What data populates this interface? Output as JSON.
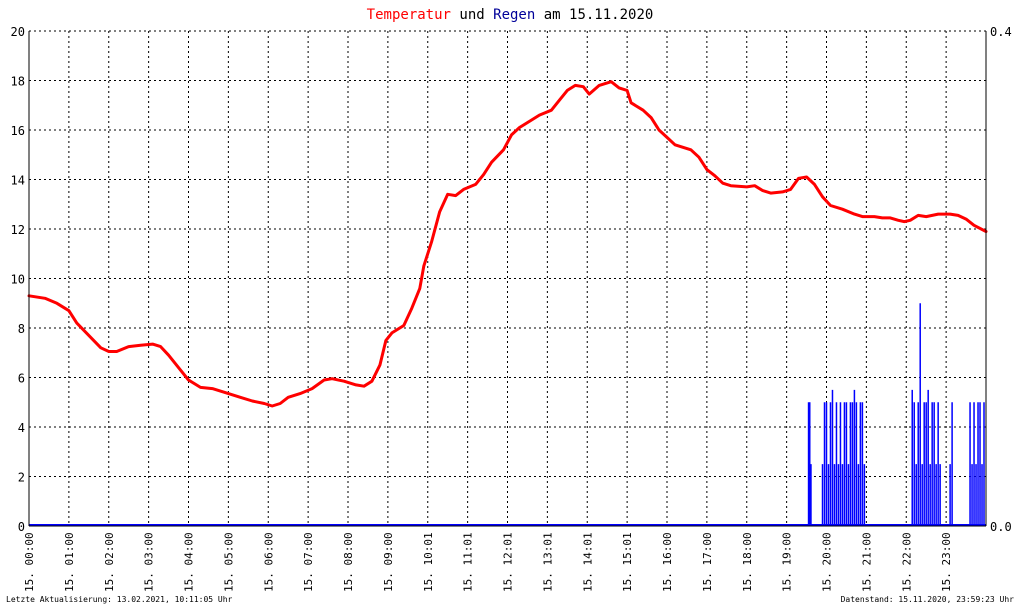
{
  "title": {
    "temp_word": "Temperatur",
    "and_word": "und",
    "rain_word": "Regen",
    "date_text": "am 15.11.2020"
  },
  "footer": {
    "left": "Letzte Aktualisierung: 13.02.2021, 10:11:05 Uhr",
    "right": "Datenstand: 15.11.2020, 23:59:23 Uhr"
  },
  "colors": {
    "temperature": "#ff0000",
    "rain": "#0000ff",
    "title_rain": "#000099",
    "grid": "#000000"
  },
  "chart_data": {
    "type": "line",
    "grid": true,
    "x_unit": "hours",
    "xlim": [
      0,
      24
    ],
    "ylim": [
      0,
      20
    ],
    "y_right_lim": [
      0,
      0.4
    ],
    "y_ticks": [
      "0",
      "2",
      "4",
      "6",
      "8",
      "10",
      "12",
      "14",
      "16",
      "18",
      "20"
    ],
    "y_right_ticks": [
      "0.0",
      "0.4"
    ],
    "x_ticks": [
      "15. 00:00",
      "15. 01:00",
      "15. 02:00",
      "15. 03:00",
      "15. 04:00",
      "15. 05:00",
      "15. 06:00",
      "15. 07:00",
      "15. 08:00",
      "15. 09:00",
      "15. 10:01",
      "15. 11:01",
      "15. 12:01",
      "15. 13:01",
      "15. 14:01",
      "15. 15:01",
      "15. 16:00",
      "15. 17:00",
      "15. 18:00",
      "15. 19:00",
      "15. 20:00",
      "15. 21:00",
      "15. 22:00",
      "15. 23:00"
    ],
    "series": [
      {
        "name": "Temperatur",
        "axis": "left",
        "points": [
          [
            0,
            9.3
          ],
          [
            0.4,
            9.2
          ],
          [
            0.7,
            9.0
          ],
          [
            1.0,
            8.7
          ],
          [
            1.2,
            8.2
          ],
          [
            1.5,
            7.7
          ],
          [
            1.8,
            7.2
          ],
          [
            2.0,
            7.05
          ],
          [
            2.2,
            7.05
          ],
          [
            2.5,
            7.25
          ],
          [
            2.8,
            7.3
          ],
          [
            3.1,
            7.35
          ],
          [
            3.3,
            7.25
          ],
          [
            3.5,
            6.9
          ],
          [
            3.8,
            6.3
          ],
          [
            4.0,
            5.9
          ],
          [
            4.3,
            5.6
          ],
          [
            4.6,
            5.55
          ],
          [
            5.0,
            5.35
          ],
          [
            5.3,
            5.2
          ],
          [
            5.6,
            5.05
          ],
          [
            5.9,
            4.95
          ],
          [
            6.1,
            4.85
          ],
          [
            6.3,
            4.95
          ],
          [
            6.5,
            5.2
          ],
          [
            6.8,
            5.35
          ],
          [
            7.1,
            5.55
          ],
          [
            7.4,
            5.9
          ],
          [
            7.6,
            5.95
          ],
          [
            7.9,
            5.85
          ],
          [
            8.2,
            5.7
          ],
          [
            8.4,
            5.65
          ],
          [
            8.6,
            5.85
          ],
          [
            8.8,
            6.5
          ],
          [
            8.95,
            7.5
          ],
          [
            9.1,
            7.8
          ],
          [
            9.4,
            8.1
          ],
          [
            9.6,
            8.8
          ],
          [
            9.8,
            9.6
          ],
          [
            9.9,
            10.5
          ],
          [
            10.1,
            11.5
          ],
          [
            10.3,
            12.7
          ],
          [
            10.5,
            13.4
          ],
          [
            10.7,
            13.35
          ],
          [
            10.9,
            13.6
          ],
          [
            11.2,
            13.8
          ],
          [
            11.4,
            14.2
          ],
          [
            11.6,
            14.7
          ],
          [
            11.9,
            15.2
          ],
          [
            12.1,
            15.8
          ],
          [
            12.3,
            16.1
          ],
          [
            12.6,
            16.4
          ],
          [
            12.8,
            16.6
          ],
          [
            13.1,
            16.8
          ],
          [
            13.3,
            17.2
          ],
          [
            13.5,
            17.6
          ],
          [
            13.7,
            17.8
          ],
          [
            13.9,
            17.75
          ],
          [
            14.05,
            17.45
          ],
          [
            14.3,
            17.8
          ],
          [
            14.6,
            17.95
          ],
          [
            14.8,
            17.7
          ],
          [
            15.0,
            17.6
          ],
          [
            15.1,
            17.1
          ],
          [
            15.4,
            16.8
          ],
          [
            15.6,
            16.5
          ],
          [
            15.8,
            16.0
          ],
          [
            16.0,
            15.7
          ],
          [
            16.2,
            15.4
          ],
          [
            16.6,
            15.2
          ],
          [
            16.8,
            14.9
          ],
          [
            17.0,
            14.4
          ],
          [
            17.2,
            14.15
          ],
          [
            17.4,
            13.85
          ],
          [
            17.6,
            13.75
          ],
          [
            18.0,
            13.7
          ],
          [
            18.2,
            13.75
          ],
          [
            18.4,
            13.55
          ],
          [
            18.6,
            13.45
          ],
          [
            18.9,
            13.5
          ],
          [
            19.1,
            13.6
          ],
          [
            19.3,
            14.05
          ],
          [
            19.5,
            14.1
          ],
          [
            19.7,
            13.8
          ],
          [
            19.9,
            13.3
          ],
          [
            20.1,
            12.95
          ],
          [
            20.4,
            12.8
          ],
          [
            20.7,
            12.6
          ],
          [
            20.9,
            12.5
          ],
          [
            21.2,
            12.5
          ],
          [
            21.4,
            12.45
          ],
          [
            21.6,
            12.45
          ],
          [
            21.8,
            12.35
          ],
          [
            21.95,
            12.3
          ],
          [
            22.1,
            12.35
          ],
          [
            22.3,
            12.55
          ],
          [
            22.5,
            12.5
          ],
          [
            22.8,
            12.6
          ],
          [
            23.1,
            12.6
          ],
          [
            23.3,
            12.55
          ],
          [
            23.5,
            12.4
          ],
          [
            23.7,
            12.15
          ],
          [
            24.0,
            11.9
          ]
        ]
      },
      {
        "name": "Regen",
        "axis": "right",
        "bar_width_h": 0.033,
        "points": [
          [
            19.55,
            0.1
          ],
          [
            19.58,
            0.1
          ],
          [
            19.61,
            0.05
          ],
          [
            19.9,
            0.05
          ],
          [
            19.95,
            0.1
          ],
          [
            20.0,
            0.1
          ],
          [
            20.05,
            0.05
          ],
          [
            20.1,
            0.1
          ],
          [
            20.15,
            0.11
          ],
          [
            20.2,
            0.05
          ],
          [
            20.25,
            0.1
          ],
          [
            20.3,
            0.05
          ],
          [
            20.35,
            0.1
          ],
          [
            20.4,
            0.05
          ],
          [
            20.45,
            0.1
          ],
          [
            20.5,
            0.1
          ],
          [
            20.55,
            0.05
          ],
          [
            20.6,
            0.1
          ],
          [
            20.65,
            0.1
          ],
          [
            20.7,
            0.11
          ],
          [
            20.75,
            0.1
          ],
          [
            20.8,
            0.05
          ],
          [
            20.85,
            0.1
          ],
          [
            20.9,
            0.1
          ],
          [
            20.95,
            0.05
          ],
          [
            22.15,
            0.11
          ],
          [
            22.2,
            0.1
          ],
          [
            22.25,
            0.05
          ],
          [
            22.3,
            0.1
          ],
          [
            22.35,
            0.18
          ],
          [
            22.4,
            0.05
          ],
          [
            22.45,
            0.1
          ],
          [
            22.5,
            0.1
          ],
          [
            22.55,
            0.11
          ],
          [
            22.6,
            0.05
          ],
          [
            22.65,
            0.1
          ],
          [
            22.7,
            0.1
          ],
          [
            22.75,
            0.05
          ],
          [
            22.8,
            0.1
          ],
          [
            22.85,
            0.05
          ],
          [
            23.1,
            0.05
          ],
          [
            23.15,
            0.1
          ],
          [
            23.6,
            0.1
          ],
          [
            23.65,
            0.05
          ],
          [
            23.7,
            0.1
          ],
          [
            23.75,
            0.05
          ],
          [
            23.8,
            0.1
          ],
          [
            23.85,
            0.1
          ],
          [
            23.9,
            0.05
          ],
          [
            23.95,
            0.1
          ]
        ]
      }
    ]
  }
}
